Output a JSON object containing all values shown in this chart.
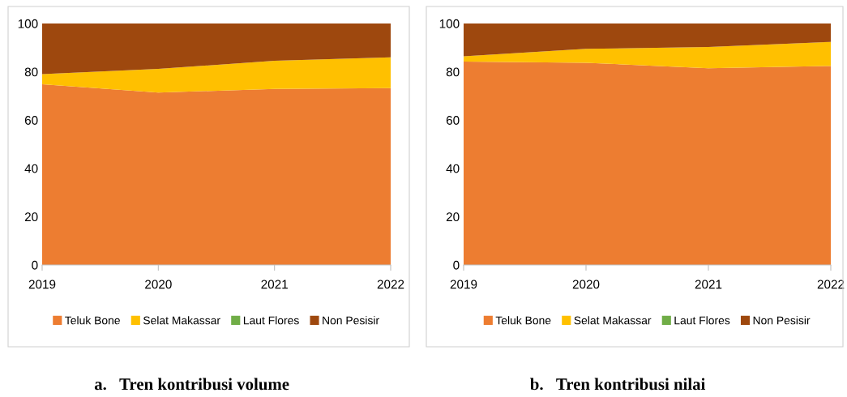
{
  "chart_data": [
    {
      "type": "area",
      "stacked": true,
      "title": "a.   Tren kontribusi volume",
      "categories": [
        "2019",
        "2020",
        "2021",
        "2022"
      ],
      "ylim": [
        0,
        100
      ],
      "yticks": [
        0,
        20,
        40,
        60,
        80,
        100
      ],
      "grid": false,
      "legend": "bottom",
      "series": [
        {
          "name": "Teluk Bone",
          "color": "#ed7d31",
          "values": [
            74.8,
            71.4,
            72.9,
            73.2
          ]
        },
        {
          "name": "Selat Makassar",
          "color": "#ffc000",
          "values": [
            4.2,
            9.8,
            11.7,
            12.8
          ]
        },
        {
          "name": "Laut Flores",
          "color": "#70ad47",
          "values": [
            null,
            null,
            null,
            null
          ]
        },
        {
          "name": "Non Pesisir",
          "color": "#9e480e",
          "values": [
            21.0,
            18.8,
            15.4,
            14.0
          ]
        }
      ]
    },
    {
      "type": "area",
      "stacked": true,
      "title": "b.   Tren kontribusi nilai",
      "categories": [
        "2019",
        "2020",
        "2021",
        "2022"
      ],
      "ylim": [
        0,
        100
      ],
      "yticks": [
        0,
        20,
        40,
        60,
        80,
        100
      ],
      "grid": false,
      "legend": "bottom",
      "series": [
        {
          "name": "Teluk Bone",
          "color": "#ed7d31",
          "values": [
            84.2,
            83.7,
            81.5,
            82.4
          ]
        },
        {
          "name": "Selat Makassar",
          "color": "#ffc000",
          "values": [
            2.2,
            5.8,
            8.8,
            10.0
          ]
        },
        {
          "name": "Laut Flores",
          "color": "#70ad47",
          "values": [
            null,
            null,
            null,
            null
          ]
        },
        {
          "name": "Non Pesisir",
          "color": "#9e480e",
          "values": [
            13.6,
            10.5,
            9.7,
            7.6
          ]
        }
      ]
    }
  ]
}
